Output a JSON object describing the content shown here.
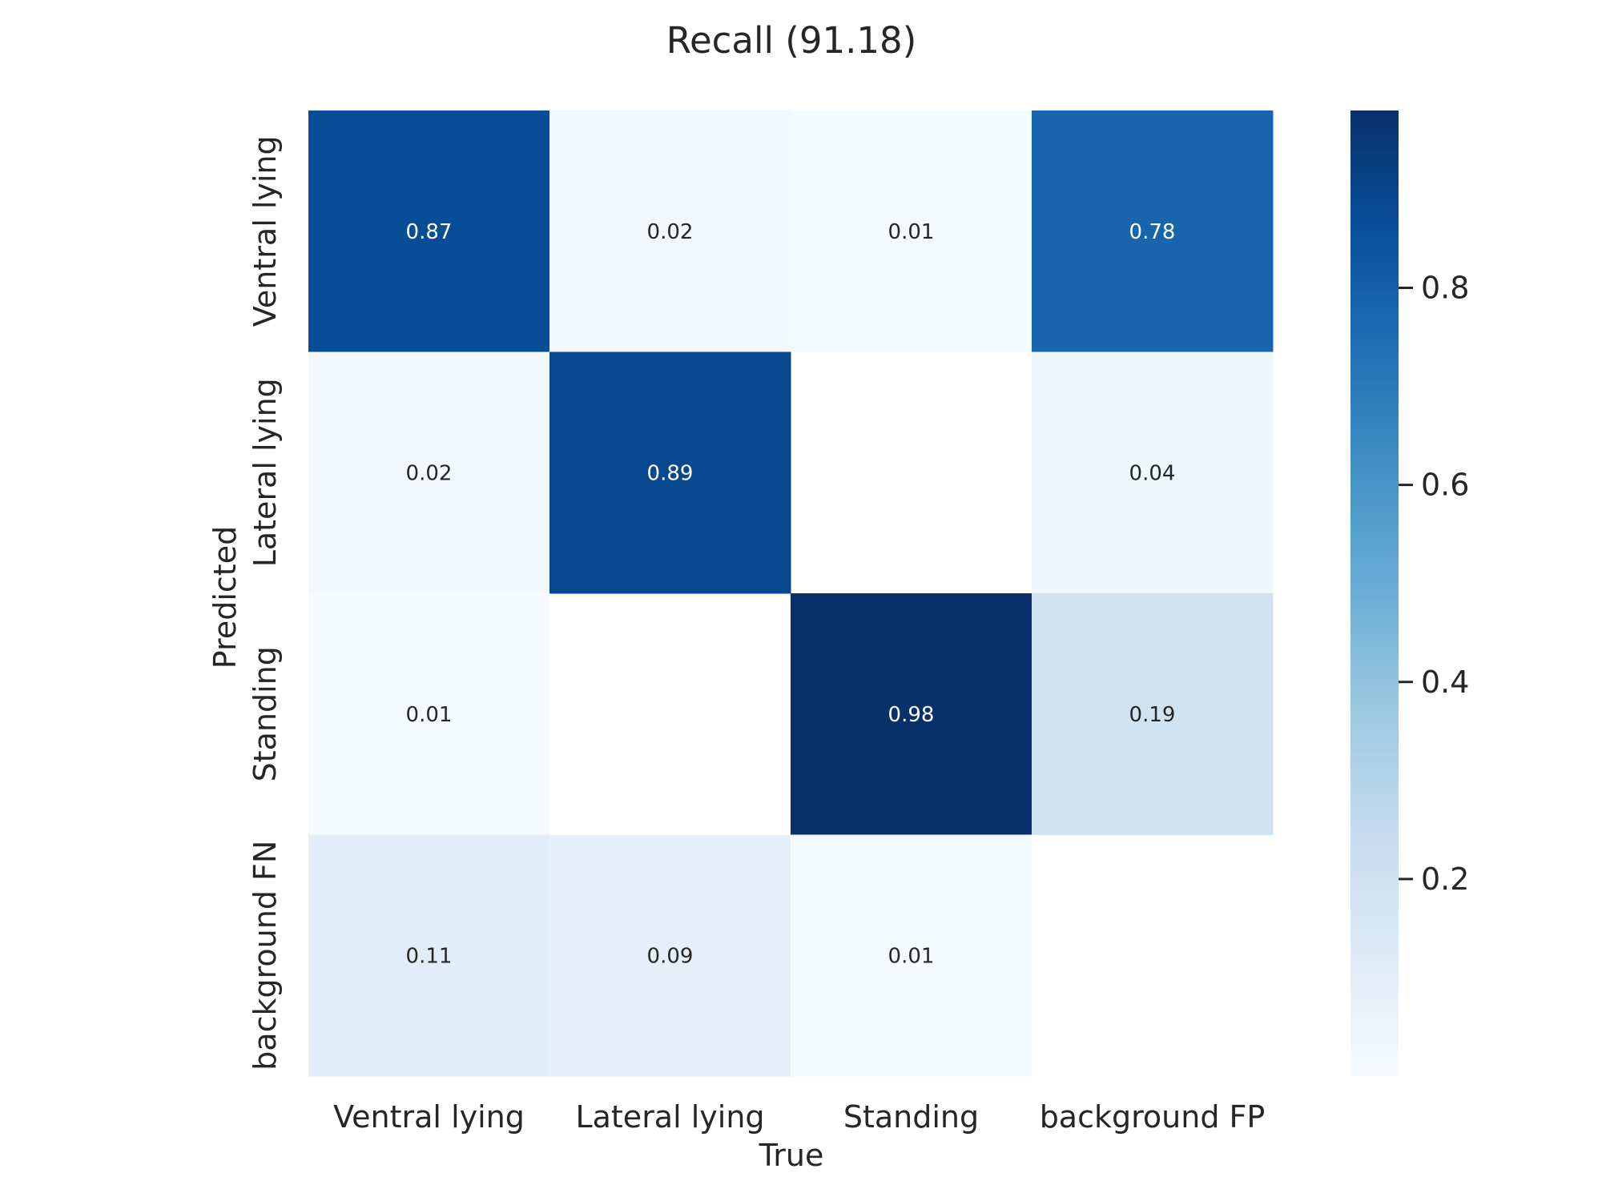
{
  "chart_data": {
    "type": "heatmap",
    "title": "Recall (91.18)",
    "xlabel": "True",
    "ylabel": "Predicted",
    "x_categories": [
      "Ventral lying",
      "Lateral lying",
      "Standing",
      "background FP"
    ],
    "y_categories": [
      "Ventral lying",
      "Lateral lying",
      "Standing",
      "background FN"
    ],
    "values": [
      [
        0.87,
        0.02,
        0.01,
        0.78
      ],
      [
        0.02,
        0.89,
        null,
        0.04
      ],
      [
        0.01,
        null,
        0.98,
        0.19
      ],
      [
        0.11,
        0.09,
        0.01,
        null
      ]
    ],
    "colorbar": {
      "min": 0.0,
      "max": 0.98,
      "ticks": [
        0.2,
        0.4,
        0.6,
        0.8
      ],
      "colormap": "Blues"
    },
    "grid": false
  }
}
